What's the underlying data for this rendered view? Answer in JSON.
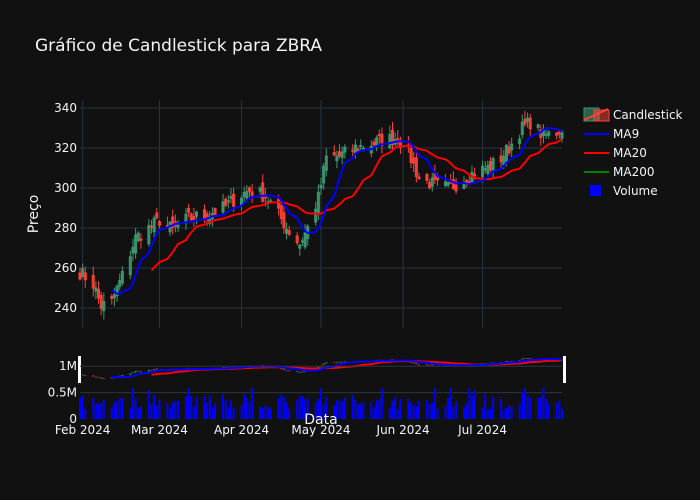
{
  "chart_data": {
    "type": "candlestick",
    "title": "Gráfico de Candlestick para ZBRA",
    "ylabel": "Preço",
    "xlabel": "Data",
    "price_ylim": [
      230,
      344
    ],
    "price_yticks": [
      240,
      260,
      280,
      300,
      320,
      340
    ],
    "volume_ylim": [
      0,
      1250000
    ],
    "volume_yticks": [
      {
        "value": 0,
        "label": "0"
      },
      {
        "value": 500000,
        "label": "0.5M"
      },
      {
        "value": 1000000,
        "label": "1M"
      }
    ],
    "x_range": [
      "2024-01-31",
      "2024-07-31"
    ],
    "x_ticks": [
      {
        "date": "2024-02-01",
        "label": "Feb 2024"
      },
      {
        "date": "2024-03-01",
        "label": "Mar 2024"
      },
      {
        "date": "2024-04-01",
        "label": "Apr 2024"
      },
      {
        "date": "2024-05-01",
        "label": "May 2024"
      },
      {
        "date": "2024-06-01",
        "label": "Jun 2024"
      },
      {
        "date": "2024-07-01",
        "label": "Jul 2024"
      }
    ],
    "anchors": [
      [
        "2024-01-31",
        258
      ],
      [
        "2024-02-05",
        252
      ],
      [
        "2024-02-08",
        241
      ],
      [
        "2024-02-12",
        243
      ],
      [
        "2024-02-16",
        256
      ],
      [
        "2024-02-21",
        275
      ],
      [
        "2024-02-26",
        280
      ],
      [
        "2024-03-01",
        284
      ],
      [
        "2024-03-06",
        279
      ],
      [
        "2024-03-12",
        285
      ],
      [
        "2024-03-18",
        286
      ],
      [
        "2024-03-25",
        290
      ],
      [
        "2024-03-29",
        294
      ],
      [
        "2024-04-04",
        299
      ],
      [
        "2024-04-10",
        296
      ],
      [
        "2024-04-15",
        287
      ],
      [
        "2024-04-18",
        280
      ],
      [
        "2024-04-23",
        272
      ],
      [
        "2024-04-26",
        280
      ],
      [
        "2024-04-30",
        295
      ],
      [
        "2024-05-03",
        315
      ],
      [
        "2024-05-08",
        316
      ],
      [
        "2024-05-14",
        320
      ],
      [
        "2024-05-20",
        322
      ],
      [
        "2024-05-24",
        324
      ],
      [
        "2024-05-30",
        325
      ],
      [
        "2024-06-03",
        318
      ],
      [
        "2024-06-07",
        305
      ],
      [
        "2024-06-12",
        302
      ],
      [
        "2024-06-18",
        300
      ],
      [
        "2024-06-24",
        304
      ],
      [
        "2024-06-28",
        308
      ],
      [
        "2024-07-03",
        310
      ],
      [
        "2024-07-08",
        315
      ],
      [
        "2024-07-12",
        322
      ],
      [
        "2024-07-16",
        330
      ],
      [
        "2024-07-19",
        333
      ],
      [
        "2024-07-24",
        326
      ],
      [
        "2024-07-29",
        328
      ],
      [
        "2024-07-31",
        330
      ]
    ],
    "series": [
      {
        "name": "Candlestick",
        "kind": "candlestick",
        "increasing_color": "#3d9970",
        "decreasing_color": "#ff4136"
      },
      {
        "name": "MA9",
        "kind": "moving_average",
        "window": 9,
        "color": "#0000ff"
      },
      {
        "name": "MA20",
        "kind": "moving_average",
        "window": 20,
        "color": "#ff0000"
      },
      {
        "name": "MA200",
        "kind": "moving_average",
        "window": 200,
        "color": "#008000"
      },
      {
        "name": "Volume",
        "kind": "bar",
        "color": "#0000ff"
      }
    ],
    "legend_position": "top-right"
  }
}
